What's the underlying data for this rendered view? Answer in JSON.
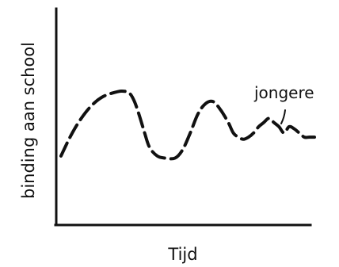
{
  "chart_data": {
    "type": "line",
    "title": "",
    "xlabel": "Tijd",
    "ylabel": "binding aan school",
    "xlim": [
      0,
      100
    ],
    "ylim": [
      0,
      100
    ],
    "grid": false,
    "series": [
      {
        "name": "jongere",
        "style": "dashed",
        "color": "#111111",
        "x": [
          0,
          4,
          8,
          12,
          16,
          20,
          24,
          27,
          29,
          31,
          33,
          35,
          38,
          41,
          45,
          48,
          51,
          54,
          57,
          60,
          63,
          66,
          68,
          70,
          72,
          74,
          76,
          78,
          80,
          82,
          84,
          86,
          88,
          90,
          92,
          94,
          96,
          98,
          100
        ],
        "y": [
          33,
          43,
          51,
          57,
          61,
          63,
          64,
          63,
          59,
          52,
          44,
          37,
          33,
          32,
          32,
          36,
          44,
          53,
          58,
          59,
          55,
          49,
          44,
          42,
          41,
          42,
          44,
          47,
          49,
          51,
          49,
          47,
          44,
          47,
          46,
          44,
          42,
          42,
          42
        ]
      }
    ],
    "annotations": [
      {
        "text": "jongere",
        "target_series": "jongere"
      }
    ]
  }
}
